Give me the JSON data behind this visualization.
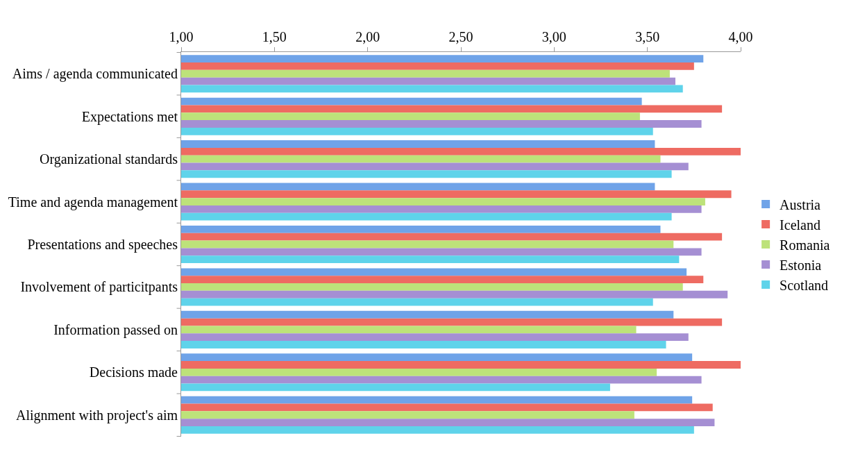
{
  "chart_data": {
    "type": "bar",
    "orientation": "horizontal",
    "categories": [
      "Aims / agenda communicated",
      "Expectations met",
      "Organizational standards",
      "Time and agenda management",
      "Presentations and speeches",
      "Involvement of particitpants",
      "Information passed on",
      "Decisions made",
      "Alignment with project's aim"
    ],
    "series": [
      {
        "name": "Austria",
        "color": "#6fa3e8",
        "values": [
          3.8,
          3.47,
          3.54,
          3.54,
          3.57,
          3.71,
          3.64,
          3.74,
          3.74
        ]
      },
      {
        "name": "Iceland",
        "color": "#ee6b62",
        "values": [
          3.75,
          3.9,
          4.0,
          3.95,
          3.9,
          3.8,
          3.9,
          4.0,
          3.85
        ]
      },
      {
        "name": "Romania",
        "color": "#bde27a",
        "values": [
          3.62,
          3.46,
          3.57,
          3.81,
          3.64,
          3.69,
          3.44,
          3.55,
          3.43
        ]
      },
      {
        "name": "Estonia",
        "color": "#a58fd3",
        "values": [
          3.65,
          3.79,
          3.72,
          3.79,
          3.79,
          3.93,
          3.72,
          3.79,
          3.86
        ]
      },
      {
        "name": "Scotland",
        "color": "#5fd3ea",
        "values": [
          3.69,
          3.53,
          3.63,
          3.63,
          3.67,
          3.53,
          3.6,
          3.3,
          3.75
        ]
      }
    ],
    "xlim": [
      1,
      4
    ],
    "xticks": [
      {
        "value": 1,
        "label": "1,00"
      },
      {
        "value": 1.5,
        "label": "1,50"
      },
      {
        "value": 2,
        "label": "2,00"
      },
      {
        "value": 2.5,
        "label": "2,50"
      },
      {
        "value": 3,
        "label": "3,00"
      },
      {
        "value": 3.5,
        "label": "3,50"
      },
      {
        "value": 4,
        "label": "4,00"
      }
    ],
    "legend": "right"
  }
}
